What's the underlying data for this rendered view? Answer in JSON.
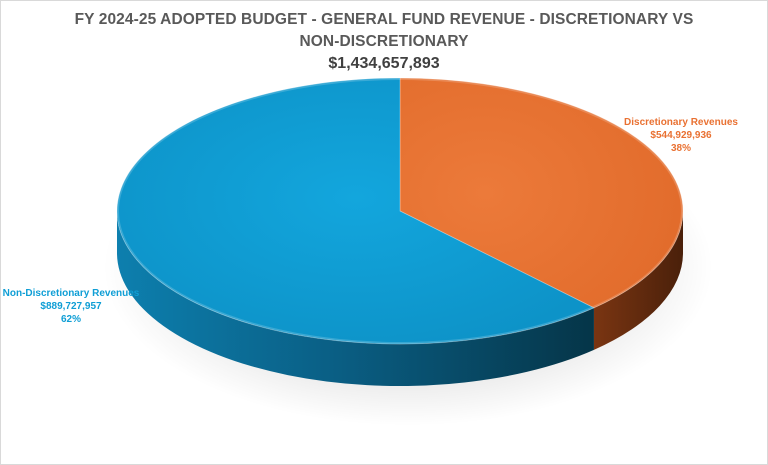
{
  "title_line1": "FY 2024-25 ADOPTED BUDGET -  GENERAL FUND REVENUE - DISCRETIONARY VS",
  "title_line2": "NON-DISCRETIONARY",
  "total": "$1,434,657,893",
  "chart_data": {
    "type": "pie",
    "title": "FY 2024-25 ADOPTED BUDGET -  GENERAL FUND REVENUE - DISCRETIONARY VS NON-DISCRETIONARY",
    "subtitle": "$1,434,657,893",
    "style": "3d",
    "slices": [
      {
        "label": "Discretionary Revenues",
        "value": 544929936,
        "value_label": "$544,929,936",
        "percent_label": "38%",
        "color": "#E97132"
      },
      {
        "label": "Non-Discretionary Revenues",
        "value": 889727957,
        "value_label": "$889,727,957",
        "percent_label": "62%",
        "color": "#0F9ED5"
      }
    ]
  }
}
